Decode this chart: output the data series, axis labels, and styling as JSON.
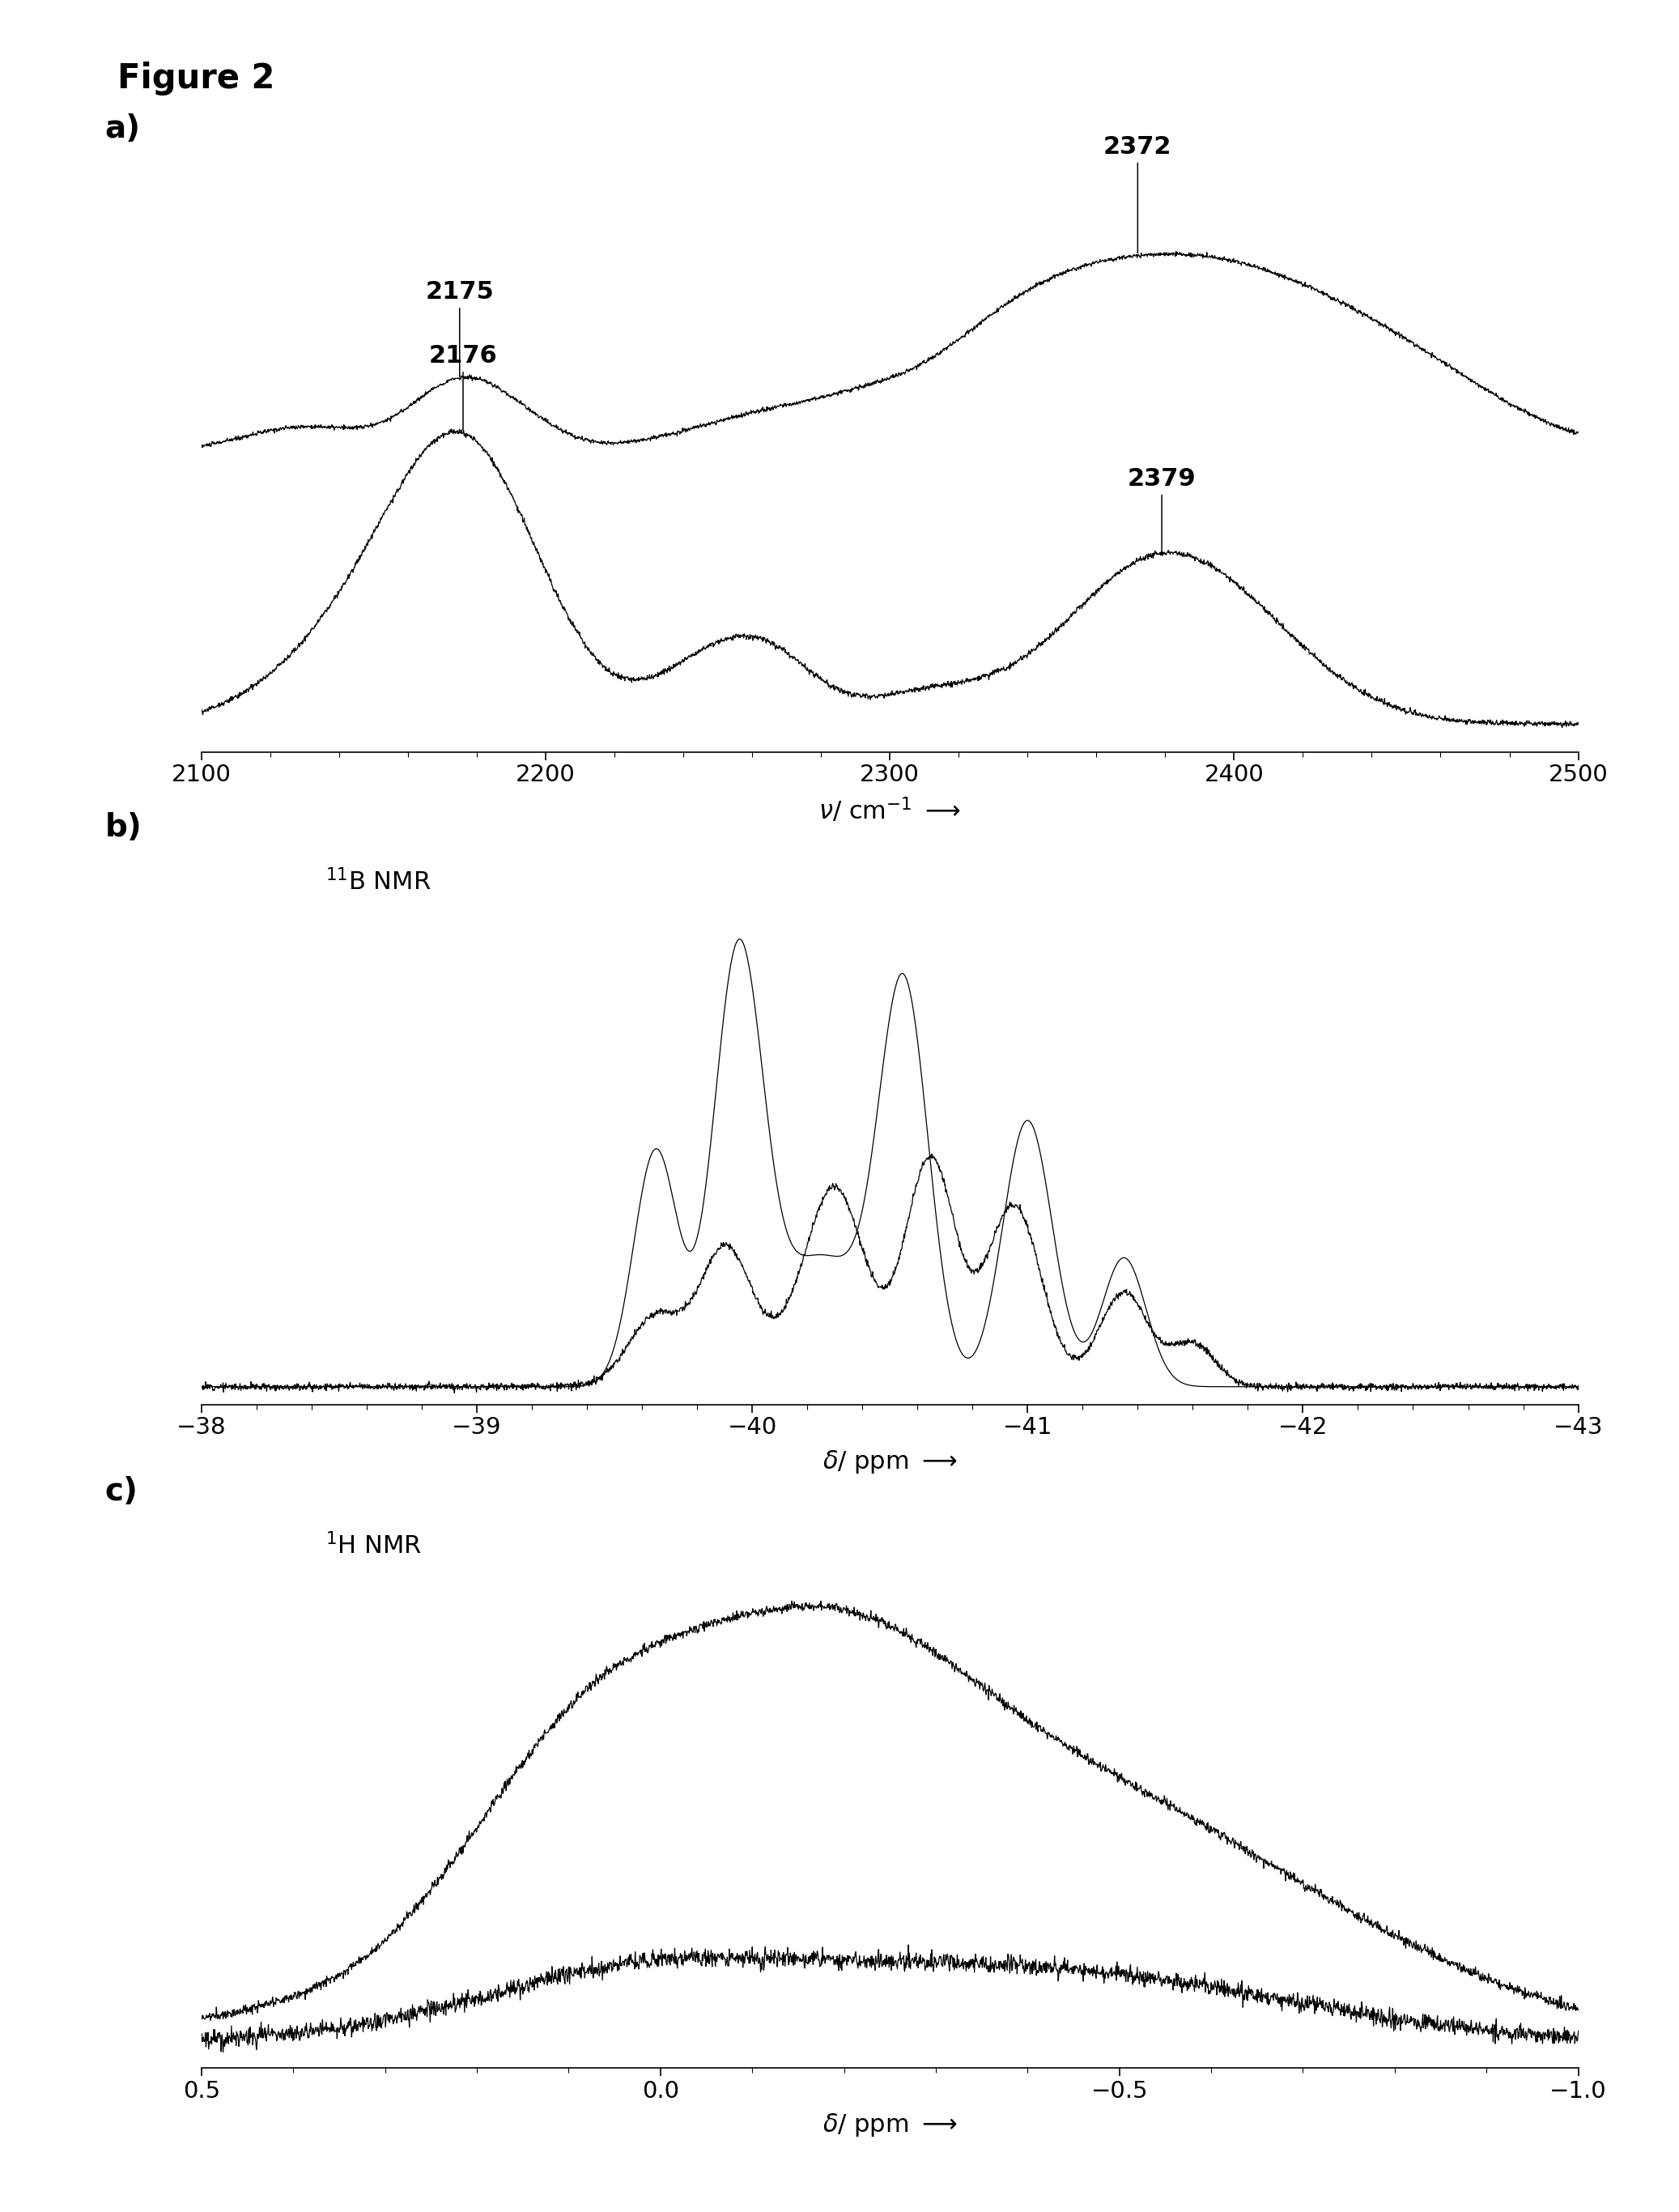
{
  "figure_title": "Figure 2",
  "panel_a": {
    "xlabel": "ν/ cm⁻¹",
    "xlim": [
      2100,
      2500
    ],
    "xticks": [
      2100,
      2200,
      2300,
      2400,
      2500
    ],
    "ann_top": [
      {
        "x": 2175,
        "label": "2175"
      },
      {
        "x": 2372,
        "label": "2372"
      }
    ],
    "ann_bot": [
      {
        "x": 2176,
        "label": "2176"
      },
      {
        "x": 2379,
        "label": "2379"
      }
    ]
  },
  "panel_b": {
    "xlabel": "δ/ ppm",
    "xlim": [
      -38,
      -43
    ],
    "xticks": [
      -38,
      -39,
      -40,
      -41,
      -42,
      -43
    ],
    "label_super": "11",
    "label": "B NMR"
  },
  "panel_c": {
    "xlabel": "δ/ ppm",
    "xlim": [
      0.5,
      -1.0
    ],
    "xticks": [
      0.5,
      0.0,
      -0.5,
      -1.0
    ],
    "label_super": "1",
    "label": "H NMR"
  },
  "background_color": "#ffffff",
  "line_color": "#000000"
}
